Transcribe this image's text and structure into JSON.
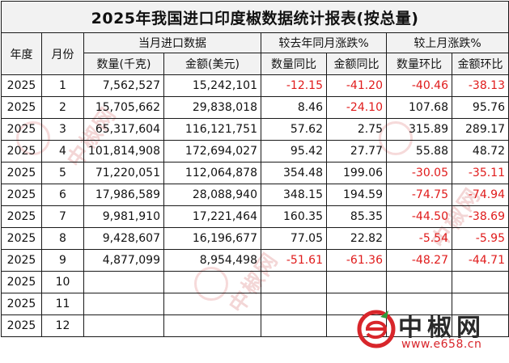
{
  "title": "2025年我国进口印度椒数据统计报表(按总量)",
  "headers": {
    "year": "年度",
    "month": "月份",
    "group_import": "当月进口数据",
    "group_yoy": "较去年同月涨跌%",
    "group_mom": "较上月涨跌%",
    "qty": "数量(千克)",
    "amount": "金额(美元)",
    "qty_yoy": "数量同比",
    "amount_yoy": "金额同比",
    "qty_mom": "数量环比",
    "amount_mom": "金额环比"
  },
  "rows": [
    {
      "year": "2025",
      "month": "1",
      "qty": "7,562,527",
      "amount": "15,242,101",
      "qty_yoy": "-12.15",
      "amount_yoy": "-41.20",
      "qty_mom": "-40.46",
      "amount_mom": "-38.13"
    },
    {
      "year": "2025",
      "month": "2",
      "qty": "15,705,662",
      "amount": "29,838,018",
      "qty_yoy": "8.46",
      "amount_yoy": "-24.10",
      "qty_mom": "107.68",
      "amount_mom": "95.76"
    },
    {
      "year": "2025",
      "month": "3",
      "qty": "65,317,604",
      "amount": "116,121,751",
      "qty_yoy": "57.62",
      "amount_yoy": "2.75",
      "qty_mom": "315.89",
      "amount_mom": "289.17"
    },
    {
      "year": "2025",
      "month": "4",
      "qty": "101,814,908",
      "amount": "172,694,027",
      "qty_yoy": "95.42",
      "amount_yoy": "27.77",
      "qty_mom": "55.88",
      "amount_mom": "48.72"
    },
    {
      "year": "2025",
      "month": "5",
      "qty": "71,220,051",
      "amount": "112,064,878",
      "qty_yoy": "354.48",
      "amount_yoy": "199.06",
      "qty_mom": "-30.05",
      "amount_mom": "-35.11"
    },
    {
      "year": "2025",
      "month": "6",
      "qty": "17,986,589",
      "amount": "28,088,940",
      "qty_yoy": "348.15",
      "amount_yoy": "194.59",
      "qty_mom": "-74.75",
      "amount_mom": "-74.94"
    },
    {
      "year": "2025",
      "month": "7",
      "qty": "9,981,910",
      "amount": "17,221,464",
      "qty_yoy": "160.35",
      "amount_yoy": "85.35",
      "qty_mom": "-44.50",
      "amount_mom": "-38.69"
    },
    {
      "year": "2025",
      "month": "8",
      "qty": "9,428,607",
      "amount": "16,196,677",
      "qty_yoy": "77.05",
      "amount_yoy": "22.82",
      "qty_mom": "-5.54",
      "amount_mom": "-5.95"
    },
    {
      "year": "2025",
      "month": "9",
      "qty": "4,877,099",
      "amount": "8,954,498",
      "qty_yoy": "-51.61",
      "amount_yoy": "-61.36",
      "qty_mom": "-48.27",
      "amount_mom": "-44.71"
    },
    {
      "year": "2025",
      "month": "10",
      "qty": "",
      "amount": "",
      "qty_yoy": "",
      "amount_yoy": "",
      "qty_mom": "",
      "amount_mom": ""
    },
    {
      "year": "2025",
      "month": "11",
      "qty": "",
      "amount": "",
      "qty_yoy": "",
      "amount_yoy": "",
      "qty_mom": "",
      "amount_mom": ""
    },
    {
      "year": "2025",
      "month": "12",
      "qty": "",
      "amount": "",
      "qty_yoy": "",
      "amount_yoy": "",
      "qty_mom": "",
      "amount_mom": ""
    }
  ],
  "colors": {
    "negative": "#e01b1b",
    "header_bg": "#f2f2f2",
    "brand_red": "#d8262b"
  },
  "logo": {
    "name": "中椒网",
    "url": "www.e658.cn",
    "icon": "e-logo-icon"
  }
}
